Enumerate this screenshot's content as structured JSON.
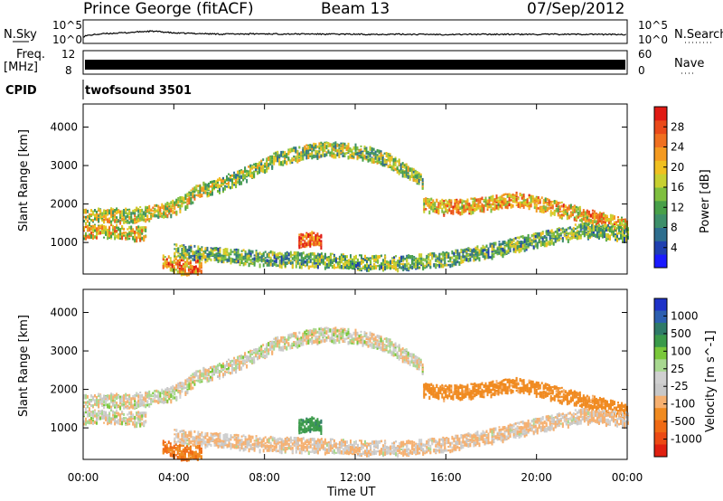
{
  "header": {
    "station": "Prince George (fitACF)",
    "beam": "Beam 13",
    "date": "07/Sep/2012"
  },
  "side_labels": {
    "nsky": "N.Sky",
    "nsearch": "N.Search",
    "freq": "Freq.",
    "freq_unit": "[MHz]",
    "nave": "Nave",
    "cpid": "CPID",
    "cpid_value": "twofsound 3501"
  },
  "noise_axis": {
    "left_ticks": [
      "10^5",
      "10^0"
    ],
    "right_ticks": [
      "10^5",
      "10^0"
    ]
  },
  "freq_axis": {
    "left_ticks": [
      "12",
      "8"
    ],
    "right_ticks": [
      "60",
      "0"
    ]
  },
  "x_axis": {
    "label": "Time UT",
    "ticks": [
      "00:00",
      "04:00",
      "08:00",
      "12:00",
      "16:00",
      "20:00",
      "00:00"
    ]
  },
  "y_axis": {
    "label": "Slant Range [km]",
    "ticks": [
      "1000",
      "2000",
      "3000",
      "4000"
    ]
  },
  "colorbars": {
    "power": {
      "label": "Power [dB]",
      "ticks": [
        "4",
        "8",
        "12",
        "16",
        "20",
        "24",
        "28"
      ],
      "colors": [
        "#1a1aff",
        "#1f3fb0",
        "#2e6e8e",
        "#3d8f6a",
        "#48a049",
        "#7fbf3f",
        "#c8d030",
        "#f0c020",
        "#f49a20",
        "#f07020",
        "#ea4a1a",
        "#e01a14"
      ]
    },
    "velocity": {
      "label": "Velocity [m s^-1]",
      "ticks": [
        "1000",
        "500",
        "100",
        "25",
        "-25",
        "-100",
        "-500",
        "-1000"
      ],
      "colors": [
        "#1e32c8",
        "#2c5fb0",
        "#2e7a68",
        "#3a9a4a",
        "#7ac83a",
        "#a8d890",
        "#d0d0d0",
        "#c8c8c8",
        "#f6b070",
        "#f08a20",
        "#f06a14",
        "#ec4a14",
        "#e02010"
      ]
    }
  },
  "chart_data": [
    {
      "type": "line",
      "title": "N.Sky",
      "x_unit": "hours UT",
      "xlim": [
        0,
        24
      ],
      "y_scale": "log",
      "ylim": [
        1,
        100000
      ],
      "series": [
        {
          "name": "N.Sky",
          "x": [
            0,
            1,
            2,
            3,
            4,
            6,
            8,
            10,
            12,
            14,
            16,
            18,
            20,
            22,
            24
          ],
          "y": [
            30,
            120,
            200,
            400,
            160,
            100,
            110,
            100,
            90,
            90,
            80,
            90,
            85,
            90,
            80
          ]
        }
      ]
    },
    {
      "type": "bar",
      "title": "Freq. / Nave",
      "x_unit": "hours UT",
      "xlim": [
        0,
        24
      ],
      "ylim_freq_mhz": [
        8,
        12
      ],
      "ylim_nave": [
        0,
        60
      ],
      "series": [
        {
          "name": "Freq.",
          "x": [
            0,
            24
          ],
          "y": [
            10.5,
            10.5
          ]
        }
      ]
    },
    {
      "type": "heatmap",
      "title": "Power [dB]",
      "x_unit": "hours UT",
      "xlim": [
        0,
        24
      ],
      "ylim_km": [
        180,
        4600
      ],
      "zlim": [
        0,
        30
      ],
      "features": [
        {
          "name": "band_A",
          "x": [
            0,
            1,
            2,
            2.6,
            3,
            3.8,
            4.5,
            5,
            5.5
          ],
          "y": [
            1700,
            1750,
            1720,
            1780,
            1800,
            1900,
            2100,
            2350,
            2450
          ],
          "z": 16
        },
        {
          "name": "band_B",
          "x": [
            5.5,
            6.5,
            7.5,
            8.5,
            9.5,
            10.5,
            11.5,
            12.5,
            13.5,
            14.5,
            15
          ],
          "y": [
            2400,
            2650,
            2900,
            3200,
            3350,
            3450,
            3450,
            3350,
            3150,
            2800,
            2550
          ],
          "z": 14
        },
        {
          "name": "band_C",
          "x": [
            15,
            16,
            17,
            18,
            19,
            20,
            21,
            22,
            23,
            24
          ],
          "y": [
            2000,
            1950,
            2000,
            2050,
            2150,
            2050,
            1900,
            1750,
            1600,
            1450
          ],
          "z": 20
        },
        {
          "name": "band_D",
          "x": [
            4,
            6,
            8,
            10,
            12,
            14,
            16,
            18,
            20,
            22,
            24
          ],
          "y": [
            800,
            700,
            620,
            580,
            520,
            500,
            600,
            820,
            1100,
            1350,
            1250
          ],
          "z": 12
        },
        {
          "name": "band_E",
          "x": [
            0,
            1,
            2,
            2.8
          ],
          "y": [
            1300,
            1320,
            1280,
            1250
          ],
          "z": 18
        },
        {
          "name": "patch_F",
          "x": [
            3.5,
            4,
            4.6,
            5.2
          ],
          "y": [
            550,
            420,
            380,
            420
          ],
          "z": 22
        },
        {
          "name": "patch_G",
          "x": [
            9.5,
            10,
            10.5
          ],
          "y": [
            1050,
            1150,
            1050
          ],
          "z": 26
        }
      ]
    },
    {
      "type": "heatmap",
      "title": "Velocity [m s^-1]",
      "x_unit": "hours UT",
      "xlim": [
        0,
        24
      ],
      "ylim_km": [
        180,
        4600
      ],
      "zlim": [
        -1000,
        1000
      ],
      "features": [
        {
          "name": "band_A",
          "x": [
            0,
            1,
            2,
            2.6,
            3,
            3.8,
            4.5,
            5,
            5.5
          ],
          "y": [
            1700,
            1750,
            1720,
            1780,
            1800,
            1900,
            2100,
            2350,
            2450
          ],
          "z": 0
        },
        {
          "name": "band_B",
          "x": [
            5.5,
            6.5,
            7.5,
            8.5,
            9.5,
            10.5,
            11.5,
            12.5,
            13.5,
            14.5,
            15
          ],
          "y": [
            2400,
            2650,
            2900,
            3200,
            3350,
            3450,
            3450,
            3350,
            3150,
            2800,
            2550
          ],
          "z": 0
        },
        {
          "name": "band_C",
          "x": [
            15,
            16,
            17,
            18,
            19,
            20,
            21,
            22,
            23,
            24
          ],
          "y": [
            2000,
            1950,
            2000,
            2050,
            2150,
            2050,
            1900,
            1750,
            1600,
            1450
          ],
          "z": -150
        },
        {
          "name": "band_D",
          "x": [
            4,
            6,
            8,
            10,
            12,
            14,
            16,
            18,
            20,
            22,
            24
          ],
          "y": [
            800,
            700,
            620,
            580,
            520,
            500,
            600,
            820,
            1100,
            1350,
            1250
          ],
          "z": -30
        },
        {
          "name": "band_E",
          "x": [
            0,
            1,
            2,
            2.8
          ],
          "y": [
            1300,
            1320,
            1280,
            1250
          ],
          "z": 0
        },
        {
          "name": "patch_F",
          "x": [
            3.5,
            4,
            4.6,
            5.2
          ],
          "y": [
            550,
            420,
            380,
            420
          ],
          "z": -300
        },
        {
          "name": "patch_G",
          "x": [
            9.5,
            10,
            10.5
          ],
          "y": [
            1050,
            1150,
            1050
          ],
          "z": 200
        }
      ]
    }
  ]
}
